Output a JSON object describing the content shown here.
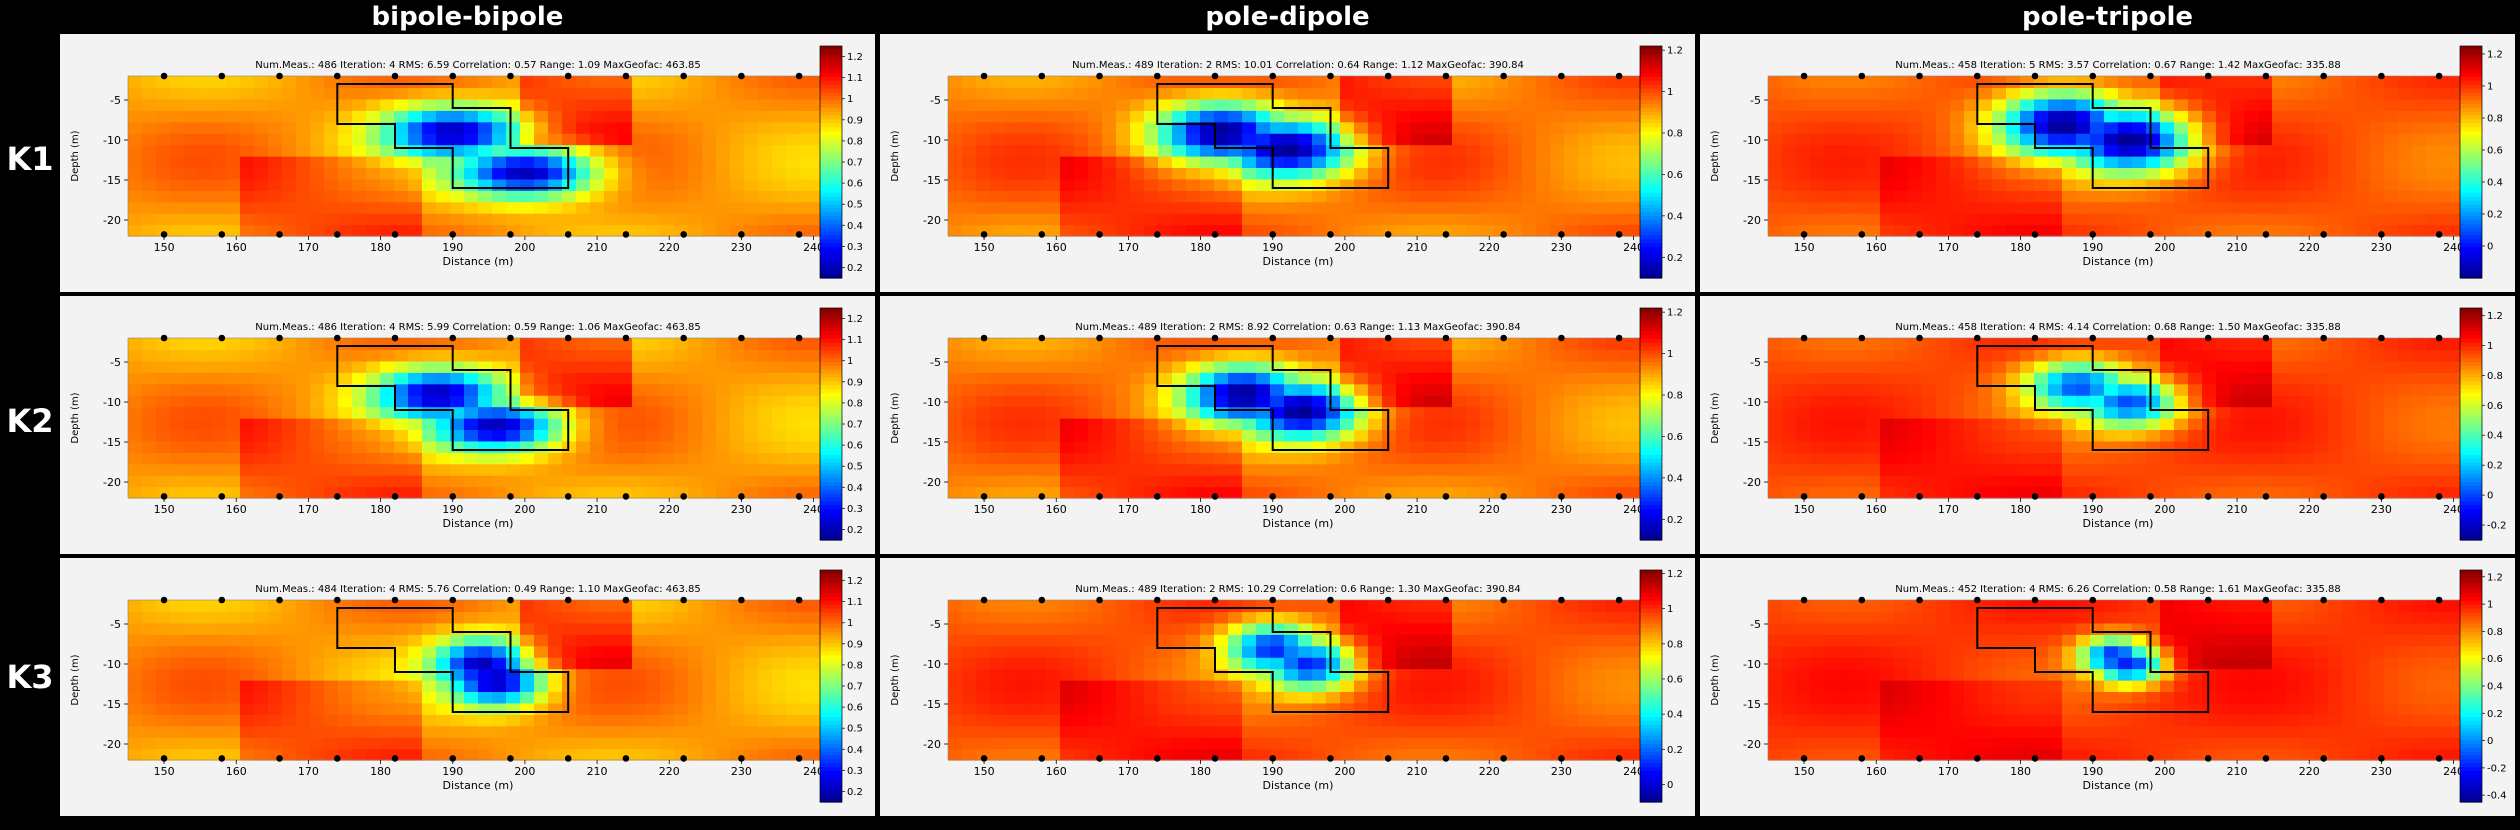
{
  "columns": [
    "bipole-bipole",
    "pole-dipole",
    "pole-tripole"
  ],
  "rows": [
    "K1",
    "K2",
    "K3"
  ],
  "chart_data": [
    {
      "type": "heatmap",
      "row": "K1",
      "column": "bipole-bipole",
      "stats": "Num.Meas.: 486   Iteration: 4   RMS: 6.59   Correlation: 0.57   Range: 1.09   MaxGeofac: 463.85",
      "xlabel": "Distance (m)",
      "ylabel": "Depth (m)",
      "xlim": [
        145,
        242
      ],
      "ylim": [
        -22,
        -2
      ],
      "xticks": [
        150,
        160,
        170,
        180,
        190,
        200,
        210,
        220,
        230,
        240
      ],
      "yticks": [
        -5,
        -10,
        -15,
        -20
      ],
      "colorbar": {
        "ticks": [
          0.2,
          0.3,
          0.4,
          0.5,
          0.6,
          0.7,
          0.8,
          0.9,
          1,
          1.1,
          1.2
        ],
        "range": [
          0.15,
          1.25
        ]
      },
      "anomaly": {
        "x": [
          190,
          200
        ],
        "y": [
          -9,
          -14
        ],
        "r": [
          12,
          4
        ],
        "min": 0.2
      },
      "electrodes_x": [
        150,
        158,
        166,
        174,
        182,
        190,
        198,
        206,
        214,
        222,
        230,
        238
      ],
      "electrodes_y": [
        -2,
        -21.8
      ]
    },
    {
      "type": "heatmap",
      "row": "K1",
      "column": "pole-dipole",
      "stats": "Num.Meas.: 489   Iteration: 2   RMS: 10.01   Correlation: 0.64   Range: 1.12   MaxGeofac: 390.84",
      "xlabel": "Distance (m)",
      "ylabel": "Depth (m)",
      "xlim": [
        145,
        242
      ],
      "ylim": [
        -22,
        -2
      ],
      "xticks": [
        150,
        160,
        170,
        180,
        190,
        200,
        210,
        220,
        230,
        240
      ],
      "yticks": [
        -5,
        -10,
        -15,
        -20
      ],
      "colorbar": {
        "ticks": [
          0.2,
          0.4,
          0.6,
          0.8,
          1,
          1.2
        ],
        "range": [
          0.1,
          1.22
        ]
      },
      "anomaly": {
        "x": [
          183,
          192
        ],
        "y": [
          -9,
          -11
        ],
        "r": [
          11,
          4.5
        ],
        "min": 0.1
      },
      "electrodes_x": [
        150,
        158,
        166,
        174,
        182,
        190,
        198,
        206,
        214,
        222,
        230,
        238
      ],
      "electrodes_y": [
        -2,
        -21.8
      ]
    },
    {
      "type": "heatmap",
      "row": "K1",
      "column": "pole-tripole",
      "stats": "Num.Meas.: 458   Iteration: 5   RMS: 3.57   Correlation: 0.67   Range: 1.42   MaxGeofac: 335.88",
      "xlabel": "Distance (m)",
      "ylabel": "Depth (m)",
      "xlim": [
        145,
        242
      ],
      "ylim": [
        -22,
        -2
      ],
      "xticks": [
        150,
        160,
        170,
        180,
        190,
        200,
        210,
        220,
        230,
        240
      ],
      "yticks": [
        -5,
        -10,
        -15,
        -20
      ],
      "colorbar": {
        "ticks": [
          0,
          0.2,
          0.4,
          0.6,
          0.8,
          1,
          1.2
        ],
        "range": [
          -0.2,
          1.25
        ]
      },
      "anomaly": {
        "x": [
          186,
          195
        ],
        "y": [
          -8,
          -10
        ],
        "r": [
          11,
          5
        ],
        "min": -0.2
      },
      "electrodes_x": [
        150,
        158,
        166,
        174,
        182,
        190,
        198,
        206,
        214,
        222,
        230,
        238
      ],
      "electrodes_y": [
        -2,
        -21.8
      ]
    },
    {
      "type": "heatmap",
      "row": "K2",
      "column": "bipole-bipole",
      "stats": "Num.Meas.: 486   Iteration: 4   RMS: 5.99   Correlation: 0.59   Range: 1.06   MaxGeofac: 463.85",
      "xlabel": "Distance (m)",
      "ylabel": "Depth (m)",
      "xlim": [
        145,
        242
      ],
      "ylim": [
        -22,
        -2
      ],
      "xticks": [
        150,
        160,
        170,
        180,
        190,
        200,
        210,
        220,
        230,
        240
      ],
      "yticks": [
        -5,
        -10,
        -15,
        -20
      ],
      "colorbar": {
        "ticks": [
          0.2,
          0.3,
          0.4,
          0.5,
          0.6,
          0.7,
          0.8,
          0.9,
          1,
          1.1,
          1.2
        ],
        "range": [
          0.15,
          1.25
        ]
      },
      "anomaly": {
        "x": [
          188,
          196
        ],
        "y": [
          -9,
          -13
        ],
        "r": [
          11,
          4
        ],
        "min": 0.2
      },
      "electrodes_x": [
        150,
        158,
        166,
        174,
        182,
        190,
        198,
        206,
        214,
        222,
        230,
        238
      ],
      "electrodes_y": [
        -2,
        -21.8
      ]
    },
    {
      "type": "heatmap",
      "row": "K2",
      "column": "pole-dipole",
      "stats": "Num.Meas.: 489   Iteration: 2   RMS: 8.92   Correlation: 0.63   Range: 1.13   MaxGeofac: 390.84",
      "xlabel": "Distance (m)",
      "ylabel": "Depth (m)",
      "xlim": [
        145,
        242
      ],
      "ylim": [
        -22,
        -2
      ],
      "xticks": [
        150,
        160,
        170,
        180,
        190,
        200,
        210,
        220,
        230,
        240
      ],
      "yticks": [
        -5,
        -10,
        -15,
        -20
      ],
      "colorbar": {
        "ticks": [
          0.2,
          0.4,
          0.6,
          0.8,
          1,
          1.2
        ],
        "range": [
          0.1,
          1.22
        ]
      },
      "anomaly": {
        "x": [
          186,
          194
        ],
        "y": [
          -9,
          -11
        ],
        "r": [
          10,
          4.5
        ],
        "min": 0.1
      },
      "electrodes_x": [
        150,
        158,
        166,
        174,
        182,
        190,
        198,
        206,
        214,
        222,
        230,
        238
      ],
      "electrodes_y": [
        -2,
        -21.8
      ]
    },
    {
      "type": "heatmap",
      "row": "K2",
      "column": "pole-tripole",
      "stats": "Num.Meas.: 458   Iteration: 4   RMS: 4.14   Correlation: 0.68   Range: 1.50   MaxGeofac: 335.88",
      "xlabel": "Distance (m)",
      "ylabel": "Depth (m)",
      "xlim": [
        145,
        242
      ],
      "ylim": [
        -22,
        -2
      ],
      "xticks": [
        150,
        160,
        170,
        180,
        190,
        200,
        210,
        220,
        230,
        240
      ],
      "yticks": [
        -5,
        -10,
        -15,
        -20
      ],
      "colorbar": {
        "ticks": [
          -0.2,
          0,
          0.2,
          0.4,
          0.6,
          0.8,
          1,
          1.2
        ],
        "range": [
          -0.3,
          1.25
        ]
      },
      "anomaly": {
        "x": [
          188,
          195
        ],
        "y": [
          -8,
          -10
        ],
        "r": [
          9,
          4
        ],
        "min": 0.0
      },
      "electrodes_x": [
        150,
        158,
        166,
        174,
        182,
        190,
        198,
        206,
        214,
        222,
        230,
        238
      ],
      "electrodes_y": [
        -2,
        -21.8
      ]
    },
    {
      "type": "heatmap",
      "row": "K3",
      "column": "bipole-bipole",
      "stats": "Num.Meas.: 484   Iteration: 4   RMS: 5.76   Correlation: 0.49   Range: 1.10   MaxGeofac: 463.85",
      "xlabel": "Distance (m)",
      "ylabel": "Depth (m)",
      "xlim": [
        145,
        242
      ],
      "ylim": [
        -22,
        -2
      ],
      "xticks": [
        150,
        160,
        170,
        180,
        190,
        200,
        210,
        220,
        230,
        240
      ],
      "yticks": [
        -5,
        -10,
        -15,
        -20
      ],
      "colorbar": {
        "ticks": [
          0.2,
          0.3,
          0.4,
          0.5,
          0.6,
          0.7,
          0.8,
          0.9,
          1,
          1.1,
          1.2
        ],
        "range": [
          0.15,
          1.25
        ]
      },
      "anomaly": {
        "x": [
          194,
          196
        ],
        "y": [
          -10,
          -12
        ],
        "r": [
          8,
          4
        ],
        "min": 0.2
      },
      "electrodes_x": [
        150,
        158,
        166,
        174,
        182,
        190,
        198,
        206,
        214,
        222,
        230,
        238
      ],
      "electrodes_y": [
        -2,
        -21.8
      ]
    },
    {
      "type": "heatmap",
      "row": "K3",
      "column": "pole-dipole",
      "stats": "Num.Meas.: 489   Iteration: 2   RMS: 10.29   Correlation: 0.6   Range: 1.30   MaxGeofac: 390.84",
      "xlabel": "Distance (m)",
      "ylabel": "Depth (m)",
      "xlim": [
        145,
        242
      ],
      "ylim": [
        -22,
        -2
      ],
      "xticks": [
        150,
        160,
        170,
        180,
        190,
        200,
        210,
        220,
        230,
        240
      ],
      "yticks": [
        -5,
        -10,
        -15,
        -20
      ],
      "colorbar": {
        "ticks": [
          0,
          0.2,
          0.4,
          0.6,
          0.8,
          1,
          1.2
        ],
        "range": [
          -0.1,
          1.22
        ]
      },
      "anomaly": {
        "x": [
          190,
          195
        ],
        "y": [
          -8,
          -10
        ],
        "r": [
          8,
          4
        ],
        "min": 0.1
      },
      "electrodes_x": [
        150,
        158,
        166,
        174,
        182,
        190,
        198,
        206,
        214,
        222,
        230,
        238
      ],
      "electrodes_y": [
        -2,
        -21.8
      ]
    },
    {
      "type": "heatmap",
      "row": "K3",
      "column": "pole-tripole",
      "stats": "Num.Meas.: 452   Iteration: 4   RMS: 6.26   Correlation: 0.58   Range: 1.61   MaxGeofac: 335.88",
      "xlabel": "Distance (m)",
      "ylabel": "Depth (m)",
      "xlim": [
        145,
        242
      ],
      "ylim": [
        -22,
        -2
      ],
      "xticks": [
        150,
        160,
        170,
        180,
        190,
        200,
        210,
        220,
        230,
        240
      ],
      "yticks": [
        -5,
        -10,
        -15,
        -20
      ],
      "colorbar": {
        "ticks": [
          -0.4,
          -0.2,
          0,
          0.2,
          0.4,
          0.6,
          0.8,
          1,
          1.2
        ],
        "range": [
          -0.45,
          1.25
        ]
      },
      "anomaly": {
        "x": [
          193,
          195
        ],
        "y": [
          -9,
          -10
        ],
        "r": [
          6,
          3
        ],
        "min": -0.2
      },
      "electrodes_x": [
        150,
        158,
        166,
        174,
        182,
        190,
        198,
        206,
        214,
        222,
        230,
        238
      ],
      "electrodes_y": [
        -2,
        -21.8
      ]
    }
  ],
  "target_outline": {
    "x": [
      174,
      190,
      190,
      198,
      198,
      206,
      206,
      190,
      190,
      182,
      182,
      174,
      174
    ],
    "y": [
      -3,
      -3,
      -6,
      -6,
      -11,
      -11,
      -16,
      -16,
      -11,
      -11,
      -8,
      -8,
      -3
    ]
  }
}
